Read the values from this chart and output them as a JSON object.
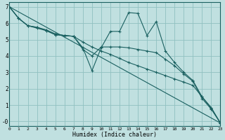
{
  "xlabel": "Humidex (Indice chaleur)",
  "bg_color": "#c0e0e0",
  "grid_color": "#90c0c0",
  "line_color": "#1a6060",
  "spine_color": "#1a6060",
  "xlim": [
    0,
    23
  ],
  "ylim": [
    -0.3,
    7.3
  ],
  "xticks": [
    0,
    1,
    2,
    3,
    4,
    5,
    6,
    7,
    8,
    9,
    10,
    11,
    12,
    13,
    14,
    15,
    16,
    17,
    18,
    19,
    20,
    21,
    22,
    23
  ],
  "yticks": [
    0,
    1,
    2,
    3,
    4,
    5,
    6,
    7
  ],
  "ytick_labels": [
    "-0",
    "1",
    "2",
    "3",
    "4",
    "5",
    "6",
    "7"
  ],
  "line1": {
    "x": [
      0,
      23
    ],
    "y": [
      7.0,
      -0.1
    ]
  },
  "line2": {
    "x": [
      0,
      1,
      2,
      3,
      4,
      5,
      6,
      7,
      8,
      9,
      10,
      11,
      12,
      13,
      14,
      15,
      16,
      17,
      18,
      19,
      20,
      21,
      22,
      23
    ],
    "y": [
      7.0,
      6.3,
      5.85,
      5.7,
      5.55,
      5.3,
      5.25,
      5.2,
      4.85,
      4.55,
      4.3,
      4.1,
      3.85,
      3.6,
      3.4,
      3.2,
      3.0,
      2.8,
      2.6,
      2.4,
      2.2,
      1.5,
      0.8,
      -0.1
    ]
  },
  "line3": {
    "x": [
      0,
      1,
      2,
      3,
      4,
      5,
      6,
      7,
      8,
      9,
      10,
      11,
      12,
      13,
      14,
      15,
      16,
      17,
      18,
      19,
      20,
      21,
      22,
      23
    ],
    "y": [
      7.0,
      6.3,
      5.85,
      5.75,
      5.6,
      5.35,
      5.25,
      5.2,
      4.4,
      4.0,
      4.55,
      4.55,
      4.55,
      4.5,
      4.4,
      4.3,
      4.2,
      3.8,
      3.4,
      2.9,
      2.45,
      1.4,
      0.75,
      -0.1
    ]
  },
  "line4": {
    "x": [
      0,
      1,
      2,
      3,
      4,
      5,
      6,
      7,
      8,
      9,
      10,
      11,
      12,
      13,
      14,
      15,
      16,
      17,
      18,
      19,
      20,
      21,
      22,
      23
    ],
    "y": [
      7.0,
      6.3,
      5.85,
      5.75,
      5.55,
      5.3,
      5.25,
      5.2,
      4.5,
      3.1,
      4.5,
      5.5,
      5.5,
      6.65,
      6.6,
      5.25,
      6.1,
      4.3,
      3.6,
      3.0,
      2.5,
      1.5,
      0.85,
      -0.1
    ]
  }
}
